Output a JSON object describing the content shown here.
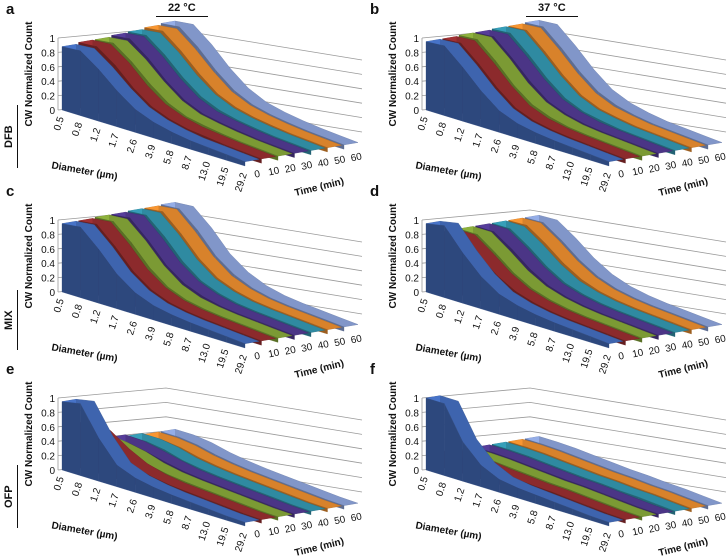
{
  "figure": {
    "columns": [
      "22 °C",
      "37 °C"
    ],
    "rows": [
      "DFB",
      "MIX",
      "OFP"
    ]
  },
  "series_colors": [
    "#3e64ae",
    "#8c2a2c",
    "#7b9a34",
    "#4b3586",
    "#2f8aa1",
    "#d8822b",
    "#8196c9"
  ],
  "chart_data": [
    {
      "panel": "a",
      "row": "DFB",
      "temperature": "22 °C",
      "type": "3d-ribbon",
      "ylabel": "CW Normalized Count",
      "xlabel": "Diameter (µm)",
      "zlabel": "Time (min)",
      "ylim": [
        0,
        1
      ],
      "y_ticks": [
        "0",
        "0.2",
        "0.4",
        "0.6",
        "0.8",
        "1"
      ],
      "x_ticks": [
        "0.5",
        "0.8",
        "1.2",
        "1.7",
        "2.6",
        "3.9",
        "5.8",
        "8.7",
        "13.0",
        "19.5",
        "29.2"
      ],
      "z_ticks": [
        "0",
        "10",
        "20",
        "30",
        "40",
        "50",
        "60"
      ],
      "series": [
        {
          "time": 0,
          "values": [
            0.88,
            0.9,
            0.72,
            0.5,
            0.32,
            0.22,
            0.16,
            0.12,
            0.1,
            0.08,
            0.06
          ]
        },
        {
          "time": 10,
          "values": [
            0.9,
            0.92,
            0.74,
            0.5,
            0.32,
            0.22,
            0.16,
            0.13,
            0.1,
            0.08,
            0.06
          ]
        },
        {
          "time": 20,
          "values": [
            0.9,
            0.93,
            0.75,
            0.52,
            0.33,
            0.22,
            0.17,
            0.13,
            0.1,
            0.08,
            0.06
          ]
        },
        {
          "time": 30,
          "values": [
            0.92,
            0.95,
            0.76,
            0.52,
            0.33,
            0.22,
            0.17,
            0.13,
            0.1,
            0.08,
            0.06
          ]
        },
        {
          "time": 40,
          "values": [
            0.93,
            0.96,
            0.77,
            0.53,
            0.34,
            0.23,
            0.17,
            0.13,
            0.1,
            0.08,
            0.06
          ]
        },
        {
          "time": 50,
          "values": [
            0.95,
            0.98,
            0.78,
            0.54,
            0.34,
            0.23,
            0.17,
            0.13,
            0.1,
            0.08,
            0.06
          ]
        },
        {
          "time": 60,
          "values": [
            0.97,
            1.0,
            0.8,
            0.55,
            0.35,
            0.23,
            0.17,
            0.13,
            0.1,
            0.08,
            0.06
          ]
        }
      ]
    },
    {
      "panel": "b",
      "row": "DFB",
      "temperature": "37 °C",
      "type": "3d-ribbon",
      "ylabel": "CW Normalized Count",
      "xlabel": "Diameter (µm)",
      "zlabel": "Time (min)",
      "ylim": [
        0,
        1
      ],
      "y_ticks": [
        "0",
        "0.2",
        "0.4",
        "0.6",
        "0.8",
        "1"
      ],
      "x_ticks": [
        "0.5",
        "0.8",
        "1.2",
        "1.7",
        "2.6",
        "3.9",
        "5.8",
        "8.7",
        "13.0",
        "19.5",
        "29.2"
      ],
      "z_ticks": [
        "0",
        "10",
        "20",
        "30",
        "40",
        "50",
        "60"
      ],
      "series": [
        {
          "time": 0,
          "values": [
            0.95,
            0.97,
            0.75,
            0.5,
            0.3,
            0.2,
            0.15,
            0.12,
            0.1,
            0.08,
            0.06
          ]
        },
        {
          "time": 10,
          "values": [
            0.95,
            0.97,
            0.75,
            0.5,
            0.3,
            0.2,
            0.15,
            0.12,
            0.1,
            0.08,
            0.06
          ]
        },
        {
          "time": 20,
          "values": [
            0.96,
            0.98,
            0.76,
            0.5,
            0.31,
            0.21,
            0.15,
            0.12,
            0.1,
            0.08,
            0.06
          ]
        },
        {
          "time": 30,
          "values": [
            0.96,
            0.98,
            0.76,
            0.51,
            0.31,
            0.21,
            0.15,
            0.12,
            0.1,
            0.08,
            0.06
          ]
        },
        {
          "time": 40,
          "values": [
            0.97,
            0.99,
            0.77,
            0.52,
            0.32,
            0.21,
            0.16,
            0.12,
            0.1,
            0.08,
            0.06
          ]
        },
        {
          "time": 50,
          "values": [
            0.97,
            0.99,
            0.77,
            0.52,
            0.32,
            0.21,
            0.16,
            0.12,
            0.1,
            0.08,
            0.06
          ]
        },
        {
          "time": 60,
          "values": [
            0.98,
            1.0,
            0.78,
            0.53,
            0.33,
            0.22,
            0.16,
            0.12,
            0.1,
            0.08,
            0.06
          ]
        }
      ]
    },
    {
      "panel": "c",
      "row": "MIX",
      "temperature": "22 °C",
      "type": "3d-ribbon",
      "ylabel": "CW Normalized Count",
      "xlabel": "Diameter (µm)",
      "zlabel": "Time (min)",
      "ylim": [
        0,
        1
      ],
      "y_ticks": [
        "0",
        "0.2",
        "0.4",
        "0.6",
        "0.8",
        "1"
      ],
      "x_ticks": [
        "0.5",
        "0.8",
        "1.2",
        "1.7",
        "2.6",
        "3.9",
        "5.8",
        "8.7",
        "13.0",
        "19.5",
        "29.2"
      ],
      "z_ticks": [
        "0",
        "10",
        "20",
        "30",
        "40",
        "50",
        "60"
      ],
      "series": [
        {
          "time": 0,
          "values": [
            0.95,
            0.98,
            0.75,
            0.48,
            0.3,
            0.2,
            0.15,
            0.12,
            0.1,
            0.08,
            0.06
          ]
        },
        {
          "time": 10,
          "values": [
            0.95,
            0.98,
            0.75,
            0.48,
            0.3,
            0.2,
            0.15,
            0.12,
            0.1,
            0.08,
            0.06
          ]
        },
        {
          "time": 20,
          "values": [
            0.96,
            0.98,
            0.76,
            0.49,
            0.3,
            0.2,
            0.15,
            0.12,
            0.1,
            0.08,
            0.06
          ]
        },
        {
          "time": 30,
          "values": [
            0.96,
            0.99,
            0.76,
            0.49,
            0.31,
            0.21,
            0.15,
            0.12,
            0.1,
            0.08,
            0.06
          ]
        },
        {
          "time": 40,
          "values": [
            0.97,
            0.99,
            0.77,
            0.5,
            0.31,
            0.21,
            0.15,
            0.12,
            0.1,
            0.08,
            0.06
          ]
        },
        {
          "time": 50,
          "values": [
            0.97,
            1.0,
            0.77,
            0.5,
            0.31,
            0.21,
            0.15,
            0.12,
            0.1,
            0.08,
            0.06
          ]
        },
        {
          "time": 60,
          "values": [
            0.98,
            1.0,
            0.78,
            0.5,
            0.32,
            0.21,
            0.15,
            0.12,
            0.1,
            0.08,
            0.06
          ]
        }
      ]
    },
    {
      "panel": "d",
      "row": "MIX",
      "temperature": "37 °C",
      "type": "3d-ribbon",
      "ylabel": "CW Normalized Count",
      "xlabel": "Diameter (µm)",
      "zlabel": "Time (min)",
      "ylim": [
        0,
        1
      ],
      "y_ticks": [
        "0",
        "0.2",
        "0.4",
        "0.6",
        "0.8",
        "1"
      ],
      "x_ticks": [
        "0.5",
        "0.8",
        "1.2",
        "1.7",
        "2.6",
        "3.9",
        "5.8",
        "8.7",
        "13.0",
        "19.5",
        "29.2"
      ],
      "z_ticks": [
        "0",
        "10",
        "20",
        "30",
        "40",
        "50",
        "60"
      ],
      "series": [
        {
          "time": 0,
          "values": [
            0.95,
            1.0,
            0.7,
            0.45,
            0.28,
            0.2,
            0.15,
            0.12,
            0.1,
            0.08,
            0.06
          ]
        },
        {
          "time": 10,
          "values": [
            0.8,
            0.8,
            0.62,
            0.42,
            0.28,
            0.2,
            0.15,
            0.12,
            0.1,
            0.08,
            0.06
          ]
        },
        {
          "time": 20,
          "values": [
            0.8,
            0.8,
            0.62,
            0.42,
            0.28,
            0.2,
            0.15,
            0.12,
            0.1,
            0.08,
            0.06
          ]
        },
        {
          "time": 30,
          "values": [
            0.8,
            0.8,
            0.63,
            0.43,
            0.28,
            0.2,
            0.15,
            0.12,
            0.1,
            0.08,
            0.06
          ]
        },
        {
          "time": 40,
          "values": [
            0.8,
            0.8,
            0.63,
            0.43,
            0.28,
            0.2,
            0.15,
            0.12,
            0.1,
            0.08,
            0.06
          ]
        },
        {
          "time": 50,
          "values": [
            0.8,
            0.81,
            0.64,
            0.44,
            0.29,
            0.2,
            0.15,
            0.12,
            0.1,
            0.08,
            0.06
          ]
        },
        {
          "time": 60,
          "values": [
            0.8,
            0.81,
            0.64,
            0.44,
            0.29,
            0.2,
            0.15,
            0.12,
            0.1,
            0.08,
            0.06
          ]
        }
      ]
    },
    {
      "panel": "e",
      "row": "OFP",
      "temperature": "22 °C",
      "type": "3d-ribbon",
      "ylabel": "CW Normalized Count",
      "xlabel": "Diameter (µm)",
      "zlabel": "Time (min)",
      "ylim": [
        0,
        1
      ],
      "y_ticks": [
        "0",
        "0.2",
        "0.4",
        "0.6",
        "0.8",
        "1"
      ],
      "x_ticks": [
        "0.5",
        "0.8",
        "1.2",
        "1.7",
        "2.6",
        "3.9",
        "5.8",
        "8.7",
        "13.0",
        "19.5",
        "29.2"
      ],
      "z_ticks": [
        "0",
        "10",
        "20",
        "30",
        "40",
        "50",
        "60"
      ],
      "series": [
        {
          "time": 0,
          "values": [
            0.95,
            1.0,
            0.6,
            0.3,
            0.2,
            0.15,
            0.12,
            0.1,
            0.08,
            0.06,
            0.05
          ]
        },
        {
          "time": 10,
          "values": [
            0.62,
            0.55,
            0.38,
            0.25,
            0.18,
            0.14,
            0.12,
            0.1,
            0.08,
            0.06,
            0.05
          ]
        },
        {
          "time": 20,
          "values": [
            0.38,
            0.35,
            0.3,
            0.22,
            0.17,
            0.14,
            0.12,
            0.1,
            0.08,
            0.06,
            0.05
          ]
        },
        {
          "time": 30,
          "values": [
            0.34,
            0.33,
            0.28,
            0.22,
            0.17,
            0.14,
            0.12,
            0.1,
            0.08,
            0.06,
            0.05
          ]
        },
        {
          "time": 40,
          "values": [
            0.32,
            0.32,
            0.28,
            0.21,
            0.17,
            0.14,
            0.12,
            0.1,
            0.08,
            0.06,
            0.05
          ]
        },
        {
          "time": 50,
          "values": [
            0.3,
            0.3,
            0.27,
            0.21,
            0.17,
            0.14,
            0.12,
            0.1,
            0.08,
            0.06,
            0.05
          ]
        },
        {
          "time": 60,
          "values": [
            0.3,
            0.3,
            0.27,
            0.21,
            0.17,
            0.14,
            0.12,
            0.1,
            0.08,
            0.06,
            0.05
          ]
        }
      ]
    },
    {
      "panel": "f",
      "row": "OFP",
      "temperature": "37 °C",
      "type": "3d-ribbon",
      "ylabel": "CW Normalized Count",
      "xlabel": "Diameter (µm)",
      "zlabel": "Time (min)",
      "ylim": [
        0,
        1
      ],
      "y_ticks": [
        "0",
        "0.2",
        "0.4",
        "0.6",
        "0.8",
        "1"
      ],
      "x_ticks": [
        "0.5",
        "0.8",
        "1.2",
        "1.7",
        "2.6",
        "3.9",
        "5.8",
        "8.7",
        "13.0",
        "19.5",
        "29.2"
      ],
      "z_ticks": [
        "0",
        "10",
        "20",
        "30",
        "40",
        "50",
        "60"
      ],
      "series": [
        {
          "time": 0,
          "values": [
            1.0,
            1.0,
            0.55,
            0.3,
            0.18,
            0.14,
            0.12,
            0.1,
            0.08,
            0.06,
            0.05
          ]
        },
        {
          "time": 10,
          "values": [
            0.22,
            0.22,
            0.2,
            0.17,
            0.15,
            0.13,
            0.12,
            0.1,
            0.08,
            0.06,
            0.05
          ]
        },
        {
          "time": 20,
          "values": [
            0.2,
            0.2,
            0.19,
            0.17,
            0.15,
            0.13,
            0.12,
            0.1,
            0.08,
            0.06,
            0.05
          ]
        },
        {
          "time": 30,
          "values": [
            0.2,
            0.2,
            0.19,
            0.17,
            0.15,
            0.13,
            0.12,
            0.1,
            0.08,
            0.06,
            0.05
          ]
        },
        {
          "time": 40,
          "values": [
            0.2,
            0.2,
            0.19,
            0.17,
            0.15,
            0.13,
            0.12,
            0.1,
            0.09,
            0.07,
            0.05
          ]
        },
        {
          "time": 50,
          "values": [
            0.2,
            0.2,
            0.19,
            0.17,
            0.15,
            0.13,
            0.12,
            0.1,
            0.09,
            0.07,
            0.05
          ]
        },
        {
          "time": 60,
          "values": [
            0.2,
            0.2,
            0.19,
            0.17,
            0.15,
            0.13,
            0.12,
            0.1,
            0.09,
            0.07,
            0.05
          ]
        }
      ]
    }
  ]
}
